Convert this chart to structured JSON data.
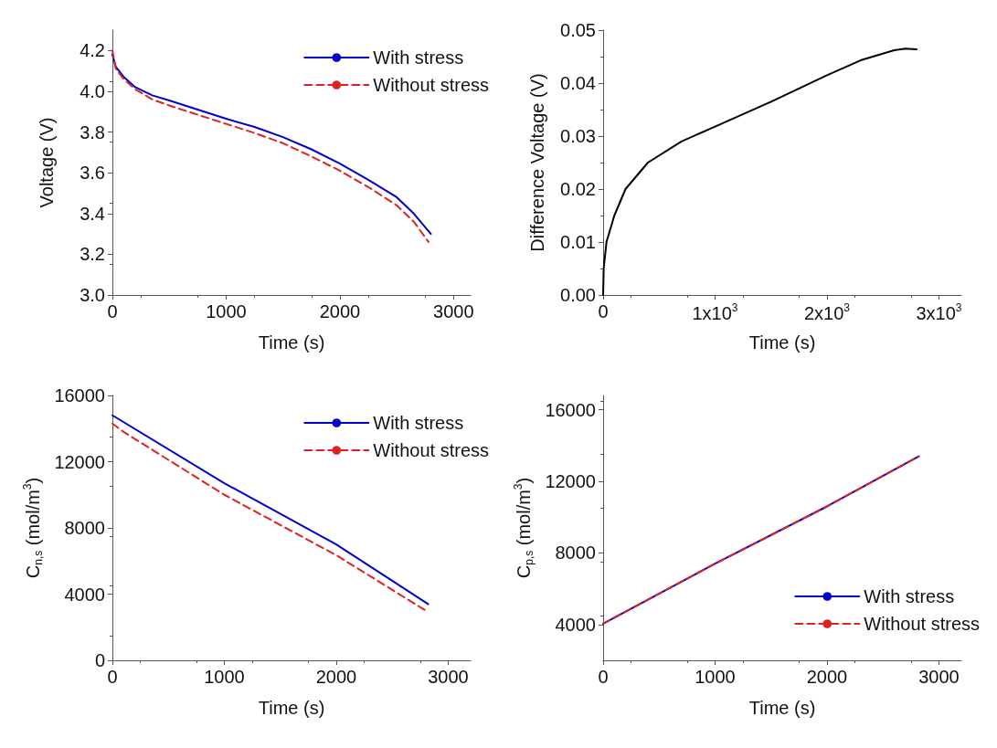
{
  "chart_data": [
    {
      "type": "line",
      "ylabel": "Voltage (V)",
      "xlabel": "Time (s)",
      "xlim": [
        0,
        3150
      ],
      "xticks": [
        0,
        1000,
        2000,
        3000
      ],
      "ylim": [
        3.0,
        4.3
      ],
      "yticks": [
        {
          "value": 3,
          "label": "3.0"
        },
        {
          "value": 3.2,
          "label": "3.2"
        },
        {
          "value": 3.4,
          "label": "3.4"
        },
        {
          "value": 3.6,
          "label": "3.6"
        },
        {
          "value": 3.8,
          "label": "3.8"
        },
        {
          "value": 4,
          "label": "4.0"
        },
        {
          "value": 4.2,
          "label": "4.2"
        }
      ],
      "grid": false,
      "legend": "top right",
      "marker": "none",
      "series": [
        {
          "name": "With stress",
          "color": "#0000cc",
          "line_style": "solid",
          "x": [
            0,
            30,
            100,
            200,
            350,
            500,
            750,
            1000,
            1250,
            1500,
            1750,
            2000,
            2250,
            2500,
            2650,
            2800
          ],
          "values": [
            4.18,
            4.12,
            4.07,
            4.02,
            3.98,
            3.955,
            3.91,
            3.865,
            3.825,
            3.775,
            3.715,
            3.645,
            3.565,
            3.48,
            3.4,
            3.3
          ]
        },
        {
          "name": "Without stress",
          "color": "#dd2222",
          "line_style": "dashed",
          "x": [
            0,
            30,
            100,
            200,
            350,
            500,
            750,
            1000,
            1250,
            1500,
            1750,
            2000,
            2250,
            2500,
            2650,
            2780
          ],
          "values": [
            4.2,
            4.11,
            4.06,
            4.01,
            3.96,
            3.93,
            3.885,
            3.84,
            3.795,
            3.745,
            3.68,
            3.61,
            3.53,
            3.44,
            3.36,
            3.26
          ]
        }
      ]
    },
    {
      "type": "line",
      "ylabel": "Difference Voltage (V)",
      "xlabel": "Time (s)",
      "xlim": [
        0,
        3200
      ],
      "xticks": [
        0,
        {
          "value": 1000,
          "label": "1x10$^{3}$"
        },
        {
          "value": 2000,
          "label": "2x10$^{3}$"
        },
        {
          "value": 3000,
          "label": "3x10$^{3}$"
        }
      ],
      "ylim": [
        0,
        0.05
      ],
      "yticks": [
        {
          "value": 0,
          "label": "0.00"
        },
        {
          "value": 0.01,
          "label": "0.01"
        },
        {
          "value": 0.02,
          "label": "0.02"
        },
        {
          "value": 0.03,
          "label": "0.03"
        },
        {
          "value": 0.04,
          "label": "0.04"
        },
        {
          "value": 0.05,
          "label": "0.05"
        }
      ],
      "grid": false,
      "legend": false,
      "marker": "none",
      "series": [
        {
          "color": "#000000",
          "line_style": "solid",
          "x": [
            0,
            5,
            30,
            100,
            200,
            400,
            700,
            1000,
            1500,
            2000,
            2300,
            2600,
            2700,
            2800
          ],
          "values": [
            0,
            0.005,
            0.01,
            0.015,
            0.02,
            0.025,
            0.029,
            0.0318,
            0.0365,
            0.0415,
            0.0443,
            0.0462,
            0.0465,
            0.0464
          ]
        }
      ]
    },
    {
      "type": "line",
      "ylabel": "C$_{n,s}$ (mol/m$^{3}$)",
      "xlabel": "Time (s)",
      "xlim": [
        0,
        3200
      ],
      "xticks": [
        0,
        1000,
        2000,
        3000
      ],
      "ylim": [
        0,
        16000
      ],
      "yticks": [
        0,
        4000,
        8000,
        12000,
        16000
      ],
      "grid": false,
      "legend": "top right",
      "marker": "none",
      "series": [
        {
          "name": "With stress",
          "color": "#0000cc",
          "line_style": "solid",
          "x": [
            0,
            1000,
            2000,
            2820
          ],
          "values": [
            14800,
            10700,
            7000,
            3400
          ]
        },
        {
          "name": "Without stress",
          "color": "#dd2222",
          "line_style": "dashed",
          "x": [
            0,
            100,
            1000,
            2000,
            2800
          ],
          "values": [
            14300,
            13800,
            10000,
            6350,
            3000
          ]
        }
      ]
    },
    {
      "type": "line",
      "ylabel": "C$_{p,s}$ (mol/m$^{3}$)",
      "xlabel": "Time (s)",
      "xlim": [
        0,
        3200
      ],
      "xticks": [
        0,
        1000,
        2000,
        3000
      ],
      "ylim": [
        2000,
        16800
      ],
      "yticks": [
        4000,
        8000,
        12000,
        16000
      ],
      "grid": false,
      "legend": "bottom right",
      "marker": "none",
      "series": [
        {
          "name": "With stress",
          "color": "#0000cc",
          "line_style": "solid",
          "x": [
            0,
            1000,
            2000,
            2820
          ],
          "values": [
            4050,
            7400,
            10600,
            13400
          ]
        },
        {
          "name": "Without stress",
          "color": "#dd2222",
          "line_style": "dashed",
          "x": [
            0,
            1000,
            2000,
            2820
          ],
          "values": [
            4050,
            7400,
            10600,
            13400
          ]
        }
      ]
    }
  ]
}
